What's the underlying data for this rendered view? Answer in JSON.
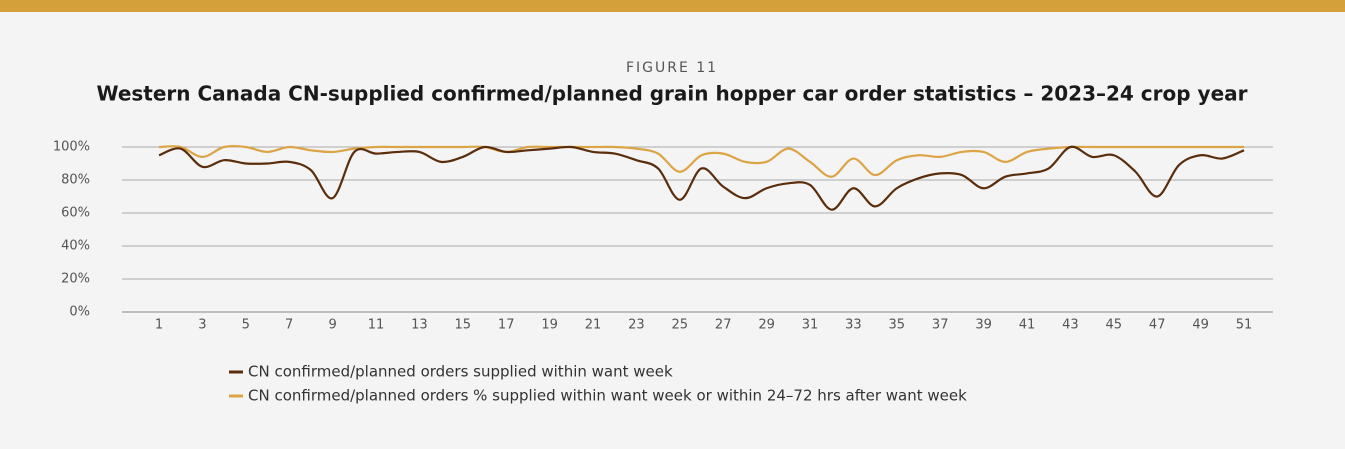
{
  "chart_data": {
    "type": "line",
    "subtitle": "FIGURE 11",
    "title": "Western Canada CN-supplied confirmed/planned grain hopper car order statistics – 2023–24 crop year",
    "categories": [
      "1",
      null,
      "3",
      null,
      "5",
      null,
      "7",
      null,
      "9",
      null,
      "11",
      null,
      "13",
      null,
      "15",
      null,
      "17",
      null,
      "19",
      null,
      "21",
      null,
      "23",
      null,
      "25",
      null,
      "27",
      null,
      "29",
      null,
      "31",
      null,
      "33",
      null,
      "35",
      null,
      "37",
      null,
      "39",
      null,
      "41",
      null,
      "43",
      null,
      "45",
      null,
      "47",
      null,
      "49",
      null,
      "51"
    ],
    "series": [
      {
        "name": "CN confirmed/planned orders supplied within want week",
        "color": "#5a2d0c",
        "values": [
          95,
          99,
          88,
          92,
          90,
          90,
          91,
          86,
          69,
          97,
          96,
          97,
          97,
          91,
          94,
          100,
          97,
          98,
          99,
          100,
          97,
          96,
          92,
          87,
          68,
          87,
          76,
          69,
          75,
          78,
          77,
          62,
          75,
          64,
          75,
          81,
          84,
          83,
          75,
          82,
          84,
          87,
          100,
          94,
          95,
          85,
          70,
          89,
          95,
          93,
          98
        ]
      },
      {
        "name": "CN confirmed/planned orders % supplied within want week or within 24–72 hrs after want week",
        "color": "#dca445",
        "values": [
          100,
          100,
          94,
          100,
          100,
          97,
          100,
          98,
          97,
          99,
          100,
          100,
          100,
          100,
          100,
          100,
          97,
          100,
          100,
          100,
          100,
          100,
          99,
          96,
          85,
          95,
          96,
          91,
          91,
          99,
          91,
          82,
          93,
          83,
          92,
          95,
          94,
          97,
          97,
          91,
          97,
          99,
          100,
          100,
          100,
          100,
          100,
          100,
          100,
          100,
          100
        ]
      }
    ],
    "ylim": [
      0,
      100
    ],
    "yticks": [
      {
        "value": 0,
        "label": "0%"
      },
      {
        "value": 20,
        "label": "20%"
      },
      {
        "value": 40,
        "label": "40%"
      },
      {
        "value": 60,
        "label": "60%"
      },
      {
        "value": 80,
        "label": "80%"
      },
      {
        "value": 100,
        "label": "100%"
      }
    ],
    "grid": true
  }
}
